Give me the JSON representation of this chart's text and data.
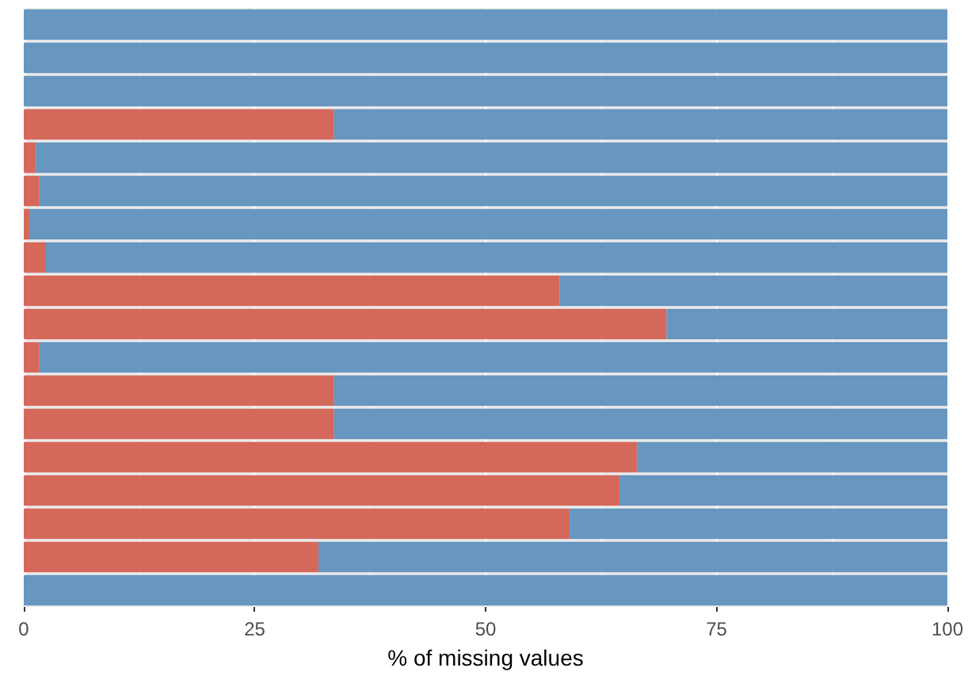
{
  "chart_data": {
    "type": "bar",
    "orientation": "horizontal",
    "stacked": true,
    "xlabel": "% of missing values",
    "categories": [
      null,
      null,
      null,
      null,
      null,
      null,
      null,
      null,
      null,
      null,
      null,
      null,
      null,
      null,
      null,
      null,
      null,
      null
    ],
    "series": [
      {
        "color": "#d4695b",
        "values": [
          0,
          0,
          0,
          33.6,
          1.3,
          1.7,
          0.6,
          2.4,
          58.0,
          69.6,
          1.7,
          33.6,
          33.6,
          66.4,
          64.5,
          59.1,
          31.9,
          0
        ]
      },
      {
        "color": "#6796c0",
        "values": [
          100,
          100,
          100,
          66.4,
          98.7,
          98.3,
          99.4,
          97.6,
          42.0,
          30.4,
          98.3,
          66.4,
          66.4,
          33.6,
          35.5,
          40.9,
          68.1,
          100
        ]
      }
    ],
    "xlim": [
      0,
      100
    ],
    "xticks": [
      0,
      25,
      50,
      75,
      100
    ],
    "grid": "x",
    "tick_labels": "x"
  }
}
